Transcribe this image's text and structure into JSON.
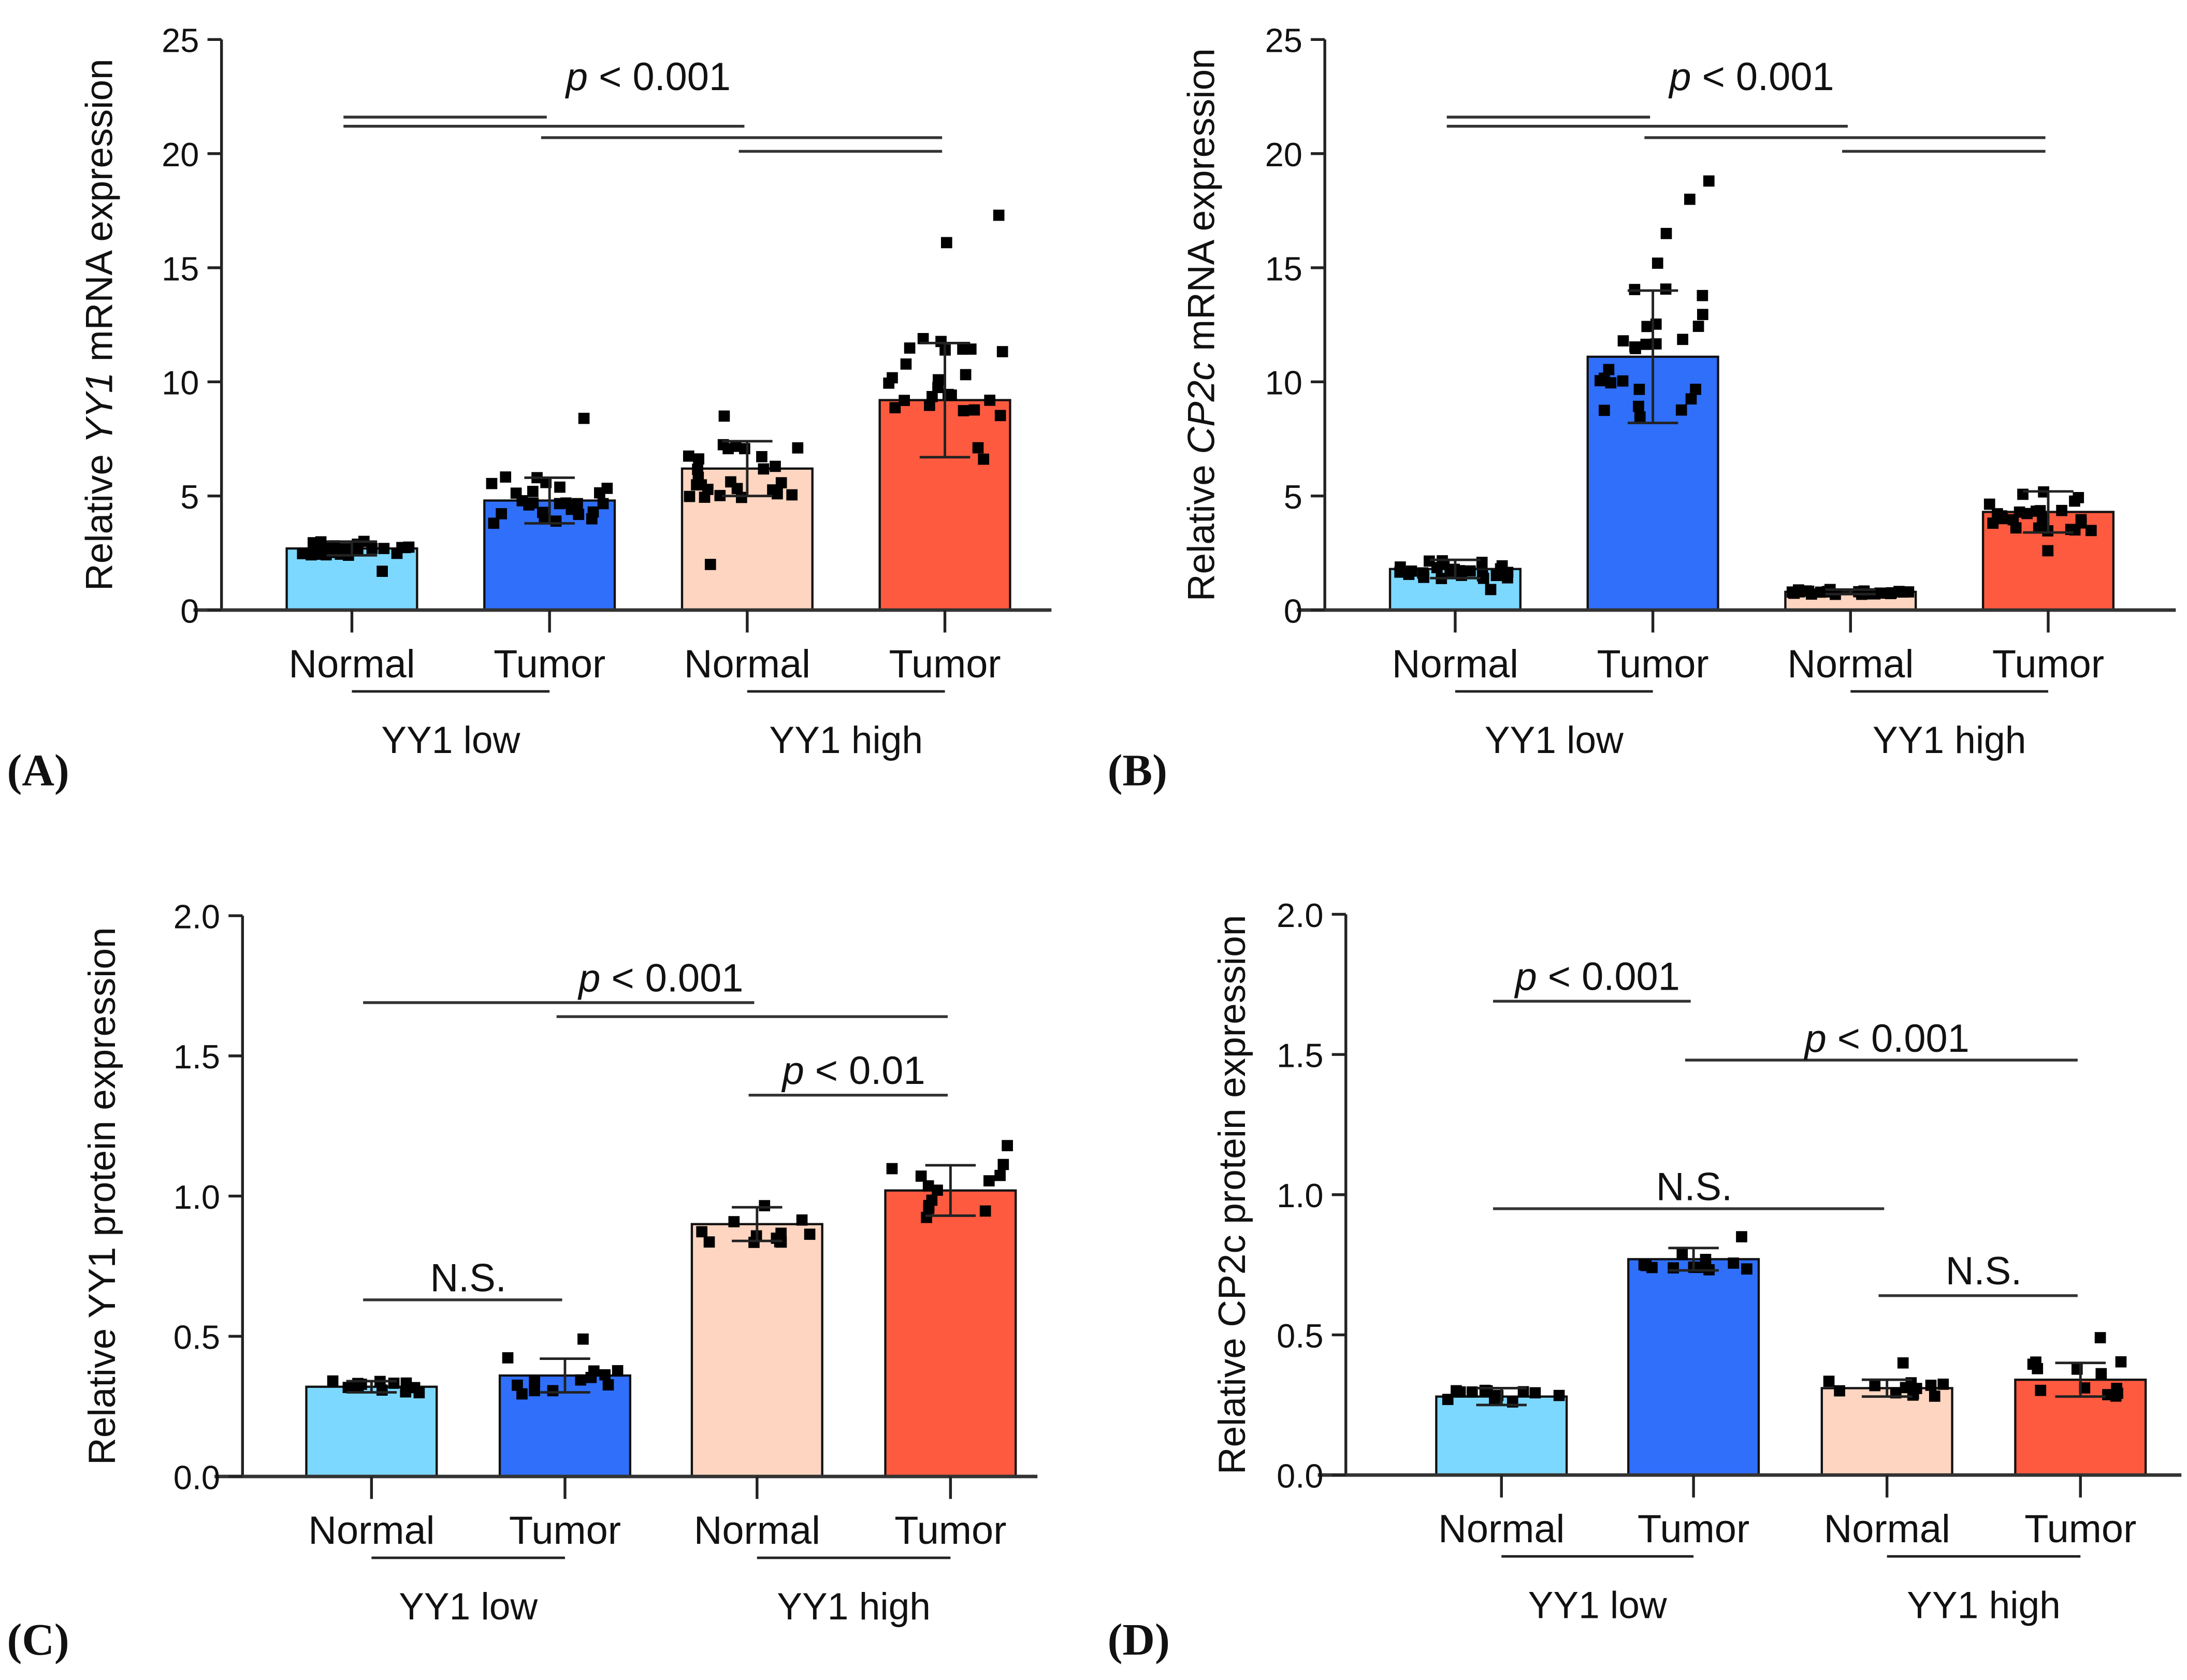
{
  "chart_data": [
    {
      "type": "bar",
      "panel_label": "(A)",
      "ylabel_parts": [
        "Relative ",
        "YY1",
        " mRNA expression"
      ],
      "ylabel_italic_index": 1,
      "ylim": [
        0,
        25
      ],
      "yticks": [
        "0",
        "5",
        "10",
        "15",
        "20",
        "25"
      ],
      "ytick_values": [
        0,
        5,
        10,
        15,
        20,
        25
      ],
      "categories": [
        "Normal",
        "Tumor",
        "Normal",
        "Tumor"
      ],
      "groups": [
        {
          "label": "YY1 low",
          "cats": [
            0,
            1
          ]
        },
        {
          "label": "YY1 high",
          "cats": [
            2,
            3
          ]
        }
      ],
      "colors": [
        "#7dd8ff",
        "#2f6ffa",
        "#fdd5c0",
        "#fd5a40"
      ],
      "values": [
        2.7,
        4.8,
        6.2,
        9.2
      ],
      "errors": [
        0.3,
        1.0,
        1.2,
        2.5
      ],
      "n_points": [
        25,
        25,
        25,
        25
      ],
      "outliers": [
        [
          1.7
        ],
        [
          8.4
        ],
        [
          2.0,
          8.5
        ],
        [
          17.3,
          16.1
        ]
      ],
      "significance": [
        {
          "text": "p < 0.001",
          "italic_p": true,
          "text_y": 23.4,
          "text_between": [
            0,
            3
          ],
          "lines": [
            {
              "from": 0,
              "to": 1,
              "y": 21.6
            },
            {
              "from": 0,
              "to": 2,
              "y": 21.2
            },
            {
              "from": 1,
              "to": 3,
              "y": 20.7
            },
            {
              "from": 2,
              "to": 3,
              "y": 20.1
            }
          ]
        }
      ]
    },
    {
      "type": "bar",
      "panel_label": "(B)",
      "ylabel_parts": [
        "Relative ",
        "CP2c",
        " mRNA expression"
      ],
      "ylabel_italic_index": 1,
      "ylim": [
        0,
        25
      ],
      "yticks": [
        "0",
        "5",
        "10",
        "15",
        "20",
        "25"
      ],
      "ytick_values": [
        0,
        5,
        10,
        15,
        20,
        25
      ],
      "categories": [
        "Normal",
        "Tumor",
        "Normal",
        "Tumor"
      ],
      "groups": [
        {
          "label": "YY1 low",
          "cats": [
            0,
            1
          ]
        },
        {
          "label": "YY1 high",
          "cats": [
            2,
            3
          ]
        }
      ],
      "colors": [
        "#7dd8ff",
        "#2f6ffa",
        "#fdd5c0",
        "#fd5a40"
      ],
      "values": [
        1.8,
        11.1,
        0.8,
        4.3
      ],
      "errors": [
        0.4,
        2.9,
        0.1,
        0.9
      ],
      "n_points": [
        25,
        25,
        25,
        25
      ],
      "outliers": [
        [
          0.9
        ],
        [
          18.8,
          18.0,
          16.5,
          15.2
        ],
        [],
        [
          2.6
        ]
      ],
      "significance": [
        {
          "text": "p < 0.001",
          "italic_p": true,
          "text_y": 23.4,
          "text_between": [
            0,
            3
          ],
          "lines": [
            {
              "from": 0,
              "to": 1,
              "y": 21.6
            },
            {
              "from": 0,
              "to": 2,
              "y": 21.2
            },
            {
              "from": 1,
              "to": 3,
              "y": 20.7
            },
            {
              "from": 2,
              "to": 3,
              "y": 20.1
            }
          ]
        }
      ]
    },
    {
      "type": "bar",
      "panel_label": "(C)",
      "ylabel_parts": [
        "Relative YY1 protein expression"
      ],
      "ylabel_italic_index": -1,
      "ylim": [
        0,
        2.0
      ],
      "yticks": [
        "0.0",
        "0.5",
        "1.0",
        "1.5",
        "2.0"
      ],
      "ytick_values": [
        0,
        0.5,
        1.0,
        1.5,
        2.0
      ],
      "categories": [
        "Normal",
        "Tumor",
        "Normal",
        "Tumor"
      ],
      "groups": [
        {
          "label": "YY1 low",
          "cats": [
            0,
            1
          ]
        },
        {
          "label": "YY1 high",
          "cats": [
            2,
            3
          ]
        }
      ],
      "colors": [
        "#7dd8ff",
        "#2f6ffa",
        "#fdd5c0",
        "#fd5a40"
      ],
      "values": [
        0.32,
        0.36,
        0.9,
        1.02
      ],
      "errors": [
        0.02,
        0.06,
        0.06,
        0.09
      ],
      "n_points": [
        12,
        12,
        12,
        12
      ],
      "outliers": [
        [],
        [
          0.49
        ],
        [],
        [
          1.18
        ]
      ],
      "significance": [
        {
          "text": "p < 0.001",
          "italic_p": true,
          "text_y": 1.78,
          "text_between": [
            0,
            3
          ],
          "lines": [
            {
              "from": 0,
              "to": 2,
              "y": 1.69
            },
            {
              "from": 1,
              "to": 3,
              "y": 1.64
            }
          ]
        },
        {
          "text": "p < 0.01",
          "italic_p": true,
          "text_y": 1.45,
          "text_between": [
            2,
            3
          ],
          "lines": [
            {
              "from": 2,
              "to": 3,
              "y": 1.36
            }
          ]
        },
        {
          "text": "N.S.",
          "italic_p": false,
          "text_y": 0.71,
          "text_between": [
            0,
            1
          ],
          "lines": [
            {
              "from": 0,
              "to": 1,
              "y": 0.63
            }
          ]
        }
      ]
    },
    {
      "type": "bar",
      "panel_label": "(D)",
      "ylabel_parts": [
        "Relative CP2c protein expression"
      ],
      "ylabel_italic_index": -1,
      "ylim": [
        0,
        2.0
      ],
      "yticks": [
        "0.0",
        "0.5",
        "1.0",
        "1.5",
        "2.0"
      ],
      "ytick_values": [
        0,
        0.5,
        1.0,
        1.5,
        2.0
      ],
      "categories": [
        "Normal",
        "Tumor",
        "Normal",
        "Tumor"
      ],
      "groups": [
        {
          "label": "YY1 low",
          "cats": [
            0,
            1
          ]
        },
        {
          "label": "YY1 high",
          "cats": [
            2,
            3
          ]
        }
      ],
      "colors": [
        "#7dd8ff",
        "#2f6ffa",
        "#fdd5c0",
        "#fd5a40"
      ],
      "values": [
        0.28,
        0.77,
        0.31,
        0.34
      ],
      "errors": [
        0.03,
        0.04,
        0.03,
        0.06
      ],
      "n_points": [
        12,
        12,
        12,
        12
      ],
      "outliers": [
        [],
        [
          0.85
        ],
        [
          0.4
        ],
        [
          0.49
        ]
      ],
      "significance": [
        {
          "text": "p < 0.001",
          "italic_p": true,
          "text_y": 1.78,
          "text_between": [
            0,
            1
          ],
          "lines": [
            {
              "from": 0,
              "to": 1,
              "y": 1.69
            }
          ]
        },
        {
          "text": "p < 0.001",
          "italic_p": true,
          "text_y": 1.56,
          "text_between": [
            1,
            3
          ],
          "lines": [
            {
              "from": 1,
              "to": 3,
              "y": 1.48
            }
          ]
        },
        {
          "text": "N.S.",
          "italic_p": false,
          "text_y": 1.03,
          "text_between": [
            0,
            2
          ],
          "lines": [
            {
              "from": 0,
              "to": 2,
              "y": 0.95
            }
          ]
        },
        {
          "text": "N.S.",
          "italic_p": false,
          "text_y": 0.73,
          "text_between": [
            2,
            3
          ],
          "lines": [
            {
              "from": 2,
              "to": 3,
              "y": 0.64
            }
          ]
        }
      ]
    }
  ]
}
